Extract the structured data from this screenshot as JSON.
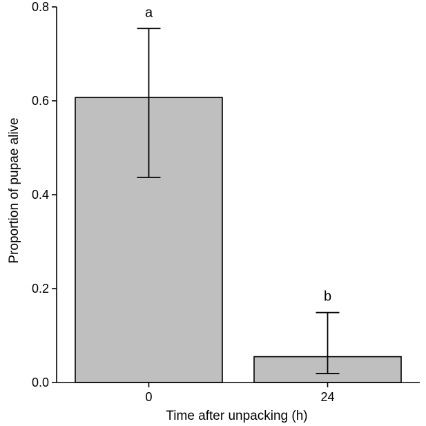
{
  "chart_data": {
    "type": "bar",
    "categories": [
      "0",
      "24"
    ],
    "values": [
      0.607,
      0.055
    ],
    "error_low": [
      0.437,
      0.019
    ],
    "error_high": [
      0.754,
      0.149
    ],
    "significance_letters": [
      "a",
      "b"
    ],
    "xlabel": "Time after unpacking (h)",
    "ylabel": "Proportion of pupae alive",
    "ylim": [
      0,
      0.8
    ],
    "yticks": [
      0.0,
      0.2,
      0.4,
      0.6,
      0.8
    ],
    "ytick_labels": [
      "0.0",
      "0.2",
      "0.4",
      "0.6",
      "0.8"
    ],
    "bar_color": "#bfbfbf",
    "grid": false,
    "legend": "none"
  }
}
